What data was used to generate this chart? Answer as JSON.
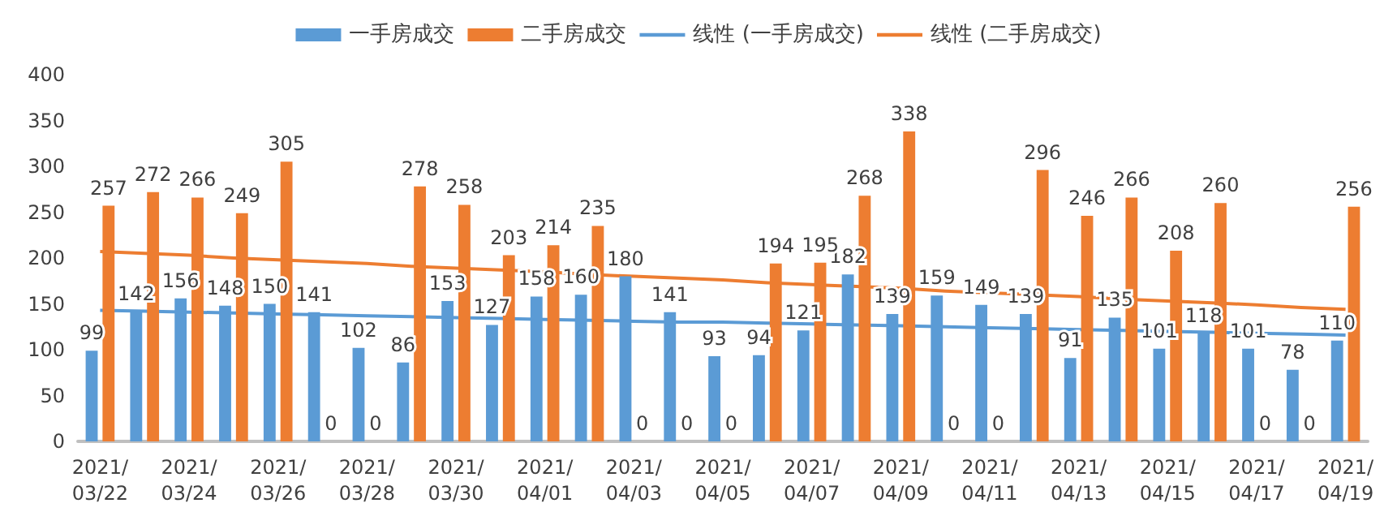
{
  "chart_data": {
    "type": "bar",
    "categories": [
      "2021/\n03/22",
      null,
      "2021/\n03/24",
      null,
      "2021/\n03/26",
      null,
      "2021/\n03/28",
      null,
      "2021/\n03/30",
      null,
      "2021/\n04/01",
      null,
      "2021/\n04/03",
      null,
      "2021/\n04/05",
      null,
      "2021/\n04/07",
      null,
      "2021/\n04/09",
      null,
      "2021/\n04/11",
      null,
      "2021/\n04/13",
      null,
      "2021/\n04/15",
      null,
      "2021/\n04/17",
      null,
      "2021/\n04/19"
    ],
    "series": [
      {
        "name": "一手房成交",
        "color": "#5b9bd5",
        "data_labels": true,
        "values": [
          99,
          142,
          156,
          148,
          150,
          141,
          102,
          86,
          153,
          127,
          158,
          160,
          180,
          141,
          93,
          94,
          121,
          182,
          139,
          159,
          149,
          139,
          91,
          135,
          101,
          118,
          101,
          78,
          110
        ]
      },
      {
        "name": "二手房成交",
        "color": "#ed7d31",
        "data_labels": true,
        "values": [
          257,
          272,
          266,
          249,
          305,
          0,
          0,
          278,
          258,
          203,
          214,
          235,
          0,
          0,
          0,
          194,
          195,
          268,
          338,
          0,
          0,
          296,
          246,
          266,
          208,
          260,
          0,
          0,
          256
        ]
      },
      {
        "name": "线性 (一手房成交)",
        "type": "line",
        "color": "#5b9bd5",
        "values": [
          143,
          142,
          141,
          140,
          139,
          138,
          137,
          136,
          135,
          134,
          133,
          132,
          131,
          130,
          130,
          129,
          128,
          127,
          126,
          125,
          124,
          123,
          122,
          121,
          120,
          119,
          118,
          117,
          116
        ]
      },
      {
        "name": "线性 (二手房成交)",
        "type": "line",
        "color": "#ed7d31",
        "values": [
          207,
          205,
          203,
          200,
          198,
          196,
          194,
          191,
          189,
          187,
          185,
          182,
          180,
          178,
          176,
          173,
          171,
          169,
          167,
          164,
          162,
          160,
          158,
          155,
          153,
          151,
          149,
          146,
          144
        ]
      }
    ],
    "ylim": [
      0,
      400
    ],
    "yticks": [
      0,
      50,
      100,
      150,
      200,
      250,
      300,
      350,
      400
    ],
    "grid": false,
    "legend": "top",
    "marker": "none"
  }
}
